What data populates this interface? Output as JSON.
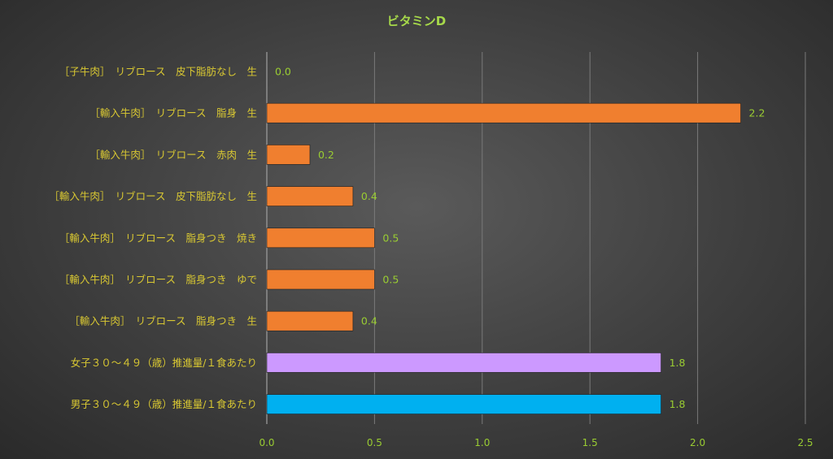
{
  "chart_data": {
    "type": "bar",
    "orientation": "horizontal",
    "title": "ビタミンD",
    "categories": [
      "［子牛肉］　リブロース　皮下脂肪なし　生",
      "［輸入牛肉］　リブロース　脂身　生",
      "［輸入牛肉］　リブロース　赤肉　生",
      "［輸入牛肉］　リブロース　皮下脂肪なし　生",
      "［輸入牛肉］　リブロース　脂身つき　焼き",
      "［輸入牛肉］　リブロース　脂身つき　ゆで",
      "［輸入牛肉］　リブロース　脂身つき　生",
      "女子３０～４９（歳）推進量/１食あたり",
      "男子３０～４９（歳）推進量/１食あたり"
    ],
    "values": [
      0.0,
      2.2,
      0.2,
      0.4,
      0.5,
      0.5,
      0.4,
      1.83,
      1.83
    ],
    "data_labels": [
      "0.0",
      "2.2",
      "0.2",
      "0.4",
      "0.5",
      "0.5",
      "0.4",
      "1.8",
      "1.8"
    ],
    "bar_colors": [
      "#f07f2f",
      "#f07f2f",
      "#f07f2f",
      "#f07f2f",
      "#f07f2f",
      "#f07f2f",
      "#f07f2f",
      "#cc99ff",
      "#00b0f0"
    ],
    "xlim": [
      0,
      2.5
    ],
    "x_ticks": [
      "0.0",
      "0.5",
      "1.0",
      "1.5",
      "2.0",
      "2.5"
    ],
    "grid": true,
    "legend": "none",
    "colors": {
      "text": "#d9c832",
      "tick_text": "#9acd32",
      "data_label": "#9acd32",
      "title": "#a6d84a",
      "grid": "#7a7a7a",
      "axis": "#a0a0a0"
    }
  }
}
